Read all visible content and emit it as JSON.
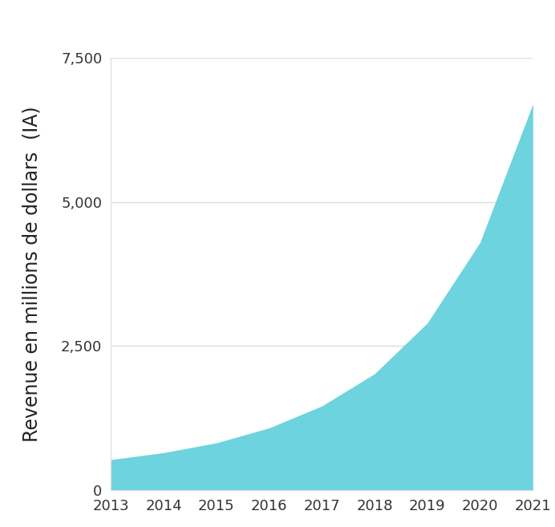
{
  "chart_data": {
    "type": "area",
    "y_label": "Revenue en millions de dollars  (IA)",
    "x": [
      2013,
      2014,
      2015,
      2016,
      2017,
      2018,
      2019,
      2020,
      2021
    ],
    "values": [
      530,
      650,
      820,
      1080,
      1460,
      2020,
      2900,
      4300,
      6700
    ],
    "color": "#6dd3de",
    "xlim": [
      2013,
      2021
    ],
    "xticks": [
      2013,
      2014,
      2015,
      2016,
      2017,
      2018,
      2019,
      2020,
      2021
    ],
    "ylim": [
      0,
      7500
    ],
    "yticks": [
      0,
      {
        "value": 2500,
        "label": "2,500"
      },
      {
        "value": 5000,
        "label": "5,000"
      },
      {
        "value": 7500,
        "label": "7,500"
      }
    ],
    "grid": true
  }
}
